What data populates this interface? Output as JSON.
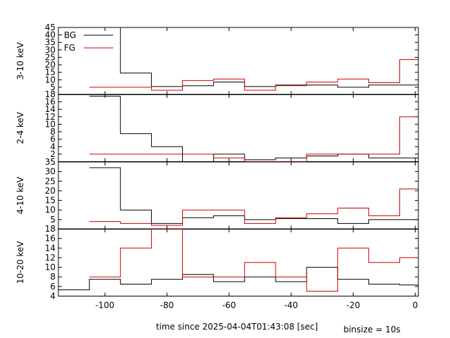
{
  "chart_data": [
    {
      "type": "line",
      "ylabel": "3-10 keV",
      "ylim": [
        0,
        45
      ],
      "yticks": [
        5,
        10,
        15,
        20,
        25,
        30,
        35,
        40,
        45
      ],
      "ytick_labels": [
        "5",
        "10",
        "15",
        "20",
        "25",
        "30",
        "35",
        "40",
        "45"
      ],
      "legend": {
        "placement": "top-left",
        "entries": [
          "BG",
          "FG"
        ]
      },
      "series": [
        {
          "name": "BG",
          "color": "#000000",
          "x": [
            -105,
            -95,
            -85,
            -75,
            -65,
            -55,
            -45,
            -35,
            -25,
            -15,
            -5
          ],
          "values": [
            45,
            14.5,
            5.5,
            6,
            8.5,
            5.5,
            6.5,
            6.5,
            5,
            6.5,
            6.5
          ]
        },
        {
          "name": "FG",
          "color": "#cc0000",
          "x": [
            -105,
            -95,
            -85,
            -75,
            -65,
            -55,
            -45,
            -35,
            -25,
            -15,
            -5
          ],
          "values": [
            5,
            5,
            3,
            9.5,
            10.5,
            3,
            6,
            8.5,
            10.5,
            8,
            23.5
          ]
        }
      ]
    },
    {
      "type": "line",
      "ylabel": "2-4 keV",
      "ylim": [
        0,
        18
      ],
      "yticks": [
        2,
        4,
        6,
        8,
        10,
        12,
        14,
        16,
        18
      ],
      "ytick_labels": [
        "2",
        "4",
        "6",
        "8",
        "10",
        "12",
        "14",
        "16",
        "18"
      ],
      "series": [
        {
          "name": "BG",
          "color": "#000000",
          "x": [
            -105,
            -95,
            -85,
            -75,
            -65,
            -55,
            -45,
            -35,
            -25,
            -15,
            -5
          ],
          "values": [
            17.5,
            7.5,
            4,
            0,
            2,
            0.5,
            1,
            1.5,
            2,
            1,
            1
          ]
        },
        {
          "name": "FG",
          "color": "#cc0000",
          "x": [
            -105,
            -95,
            -85,
            -75,
            -65,
            -55,
            -45,
            -35,
            -25,
            -15,
            -5
          ],
          "values": [
            2,
            2,
            2,
            2,
            1,
            0,
            0,
            2,
            2,
            2,
            12
          ]
        }
      ]
    },
    {
      "type": "line",
      "ylabel": "4-10 keV",
      "ylim": [
        0,
        35
      ],
      "yticks": [
        5,
        10,
        15,
        20,
        25,
        30,
        35
      ],
      "ytick_labels": [
        "5",
        "10",
        "15",
        "20",
        "25",
        "30",
        "35"
      ],
      "series": [
        {
          "name": "BG",
          "color": "#000000",
          "x": [
            -105,
            -95,
            -85,
            -75,
            -65,
            -55,
            -45,
            -35,
            -25,
            -15,
            -5
          ],
          "values": [
            32,
            10,
            3,
            6,
            7,
            5,
            5.5,
            5.5,
            3,
            5,
            5
          ]
        },
        {
          "name": "FG",
          "color": "#cc0000",
          "x": [
            -105,
            -95,
            -85,
            -75,
            -65,
            -55,
            -45,
            -35,
            -25,
            -15,
            -5
          ],
          "values": [
            4,
            3,
            2,
            10,
            10,
            3,
            6,
            8,
            11,
            7,
            21
          ]
        }
      ]
    },
    {
      "type": "line",
      "ylabel": "10-20 keV",
      "ylim": [
        4,
        18
      ],
      "yticks": [
        4,
        6,
        8,
        10,
        12,
        14,
        16,
        18
      ],
      "ytick_labels": [
        "4",
        "6",
        "8",
        "10",
        "12",
        "14",
        "16",
        "18"
      ],
      "xlabel": "time since 2025-04-04T01:43:08 [sec]",
      "xlim": [
        -115,
        1
      ],
      "xticks": [
        -100,
        -80,
        -60,
        -40,
        -20,
        0
      ],
      "xtick_labels": [
        "-100",
        "-80",
        "-60",
        "-40",
        "-20",
        "0"
      ],
      "series": [
        {
          "name": "BG",
          "color": "#000000",
          "x": [
            -115,
            -105,
            -95,
            -85,
            -75,
            -65,
            -55,
            -45,
            -35,
            -25,
            -15,
            -5
          ],
          "values": [
            5.3,
            7.5,
            6.5,
            7.5,
            8.5,
            7,
            8,
            7,
            10,
            7.5,
            6.5,
            6.3
          ]
        },
        {
          "name": "FG",
          "color": "#cc0000",
          "x": [
            -105,
            -95,
            -85,
            -75,
            -65,
            -55,
            -45,
            -35,
            -25,
            -15,
            -5
          ],
          "values": [
            8,
            14,
            18,
            8,
            8,
            11,
            8,
            5,
            14,
            11,
            12
          ]
        }
      ]
    }
  ],
  "annotation": "binsize = 10s"
}
